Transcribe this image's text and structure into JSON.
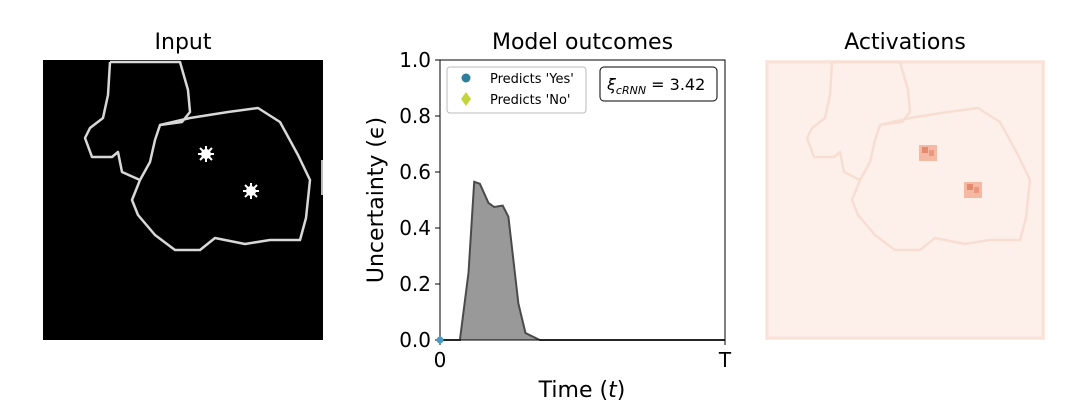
{
  "panels": {
    "input_title": "Input",
    "outcomes_title": "Model outcomes",
    "activations_title": "Activations"
  },
  "chart_data": {
    "type": "area",
    "title": "Model outcomes",
    "xlabel": "Time (t)",
    "ylabel": "Uncertainty (ϵ)",
    "ylim": [
      0,
      1.0
    ],
    "x_tick_labels": [
      "0",
      "T"
    ],
    "y_tick_labels": [
      "0.0",
      "0.2",
      "0.4",
      "0.6",
      "0.8",
      "1.0"
    ],
    "grid": false,
    "legend_position": "top-left",
    "legend": [
      {
        "label": "Predicts 'Yes'",
        "marker": "circle",
        "color": "#2e7e9b"
      },
      {
        "label": "Predicts 'No'",
        "marker": "diamond",
        "color": "#c5d43a"
      }
    ],
    "annotation": {
      "symbol": "ξ",
      "subscript": "cRNN",
      "text": " = 3.42",
      "position": "top-right"
    },
    "series": [
      {
        "fill_color": "#999999",
        "line_color": "#4a4a4a",
        "x": [
          0,
          0.07,
          0.1,
          0.12,
          0.14,
          0.17,
          0.19,
          0.22,
          0.24,
          0.275,
          0.3,
          0.35,
          1.0
        ],
        "y": [
          0,
          0,
          0.24,
          0.565,
          0.558,
          0.49,
          0.475,
          0.48,
          0.44,
          0.13,
          0.025,
          0,
          0
        ]
      }
    ],
    "markers": [
      {
        "x": 0,
        "y": 0,
        "series": "Predicts 'Yes'"
      }
    ]
  },
  "colors": {
    "input_background": "#000000",
    "input_outline": "#d8d8d8",
    "activation_background": "#fdf0eb",
    "activation_spot": "#e38a70"
  }
}
